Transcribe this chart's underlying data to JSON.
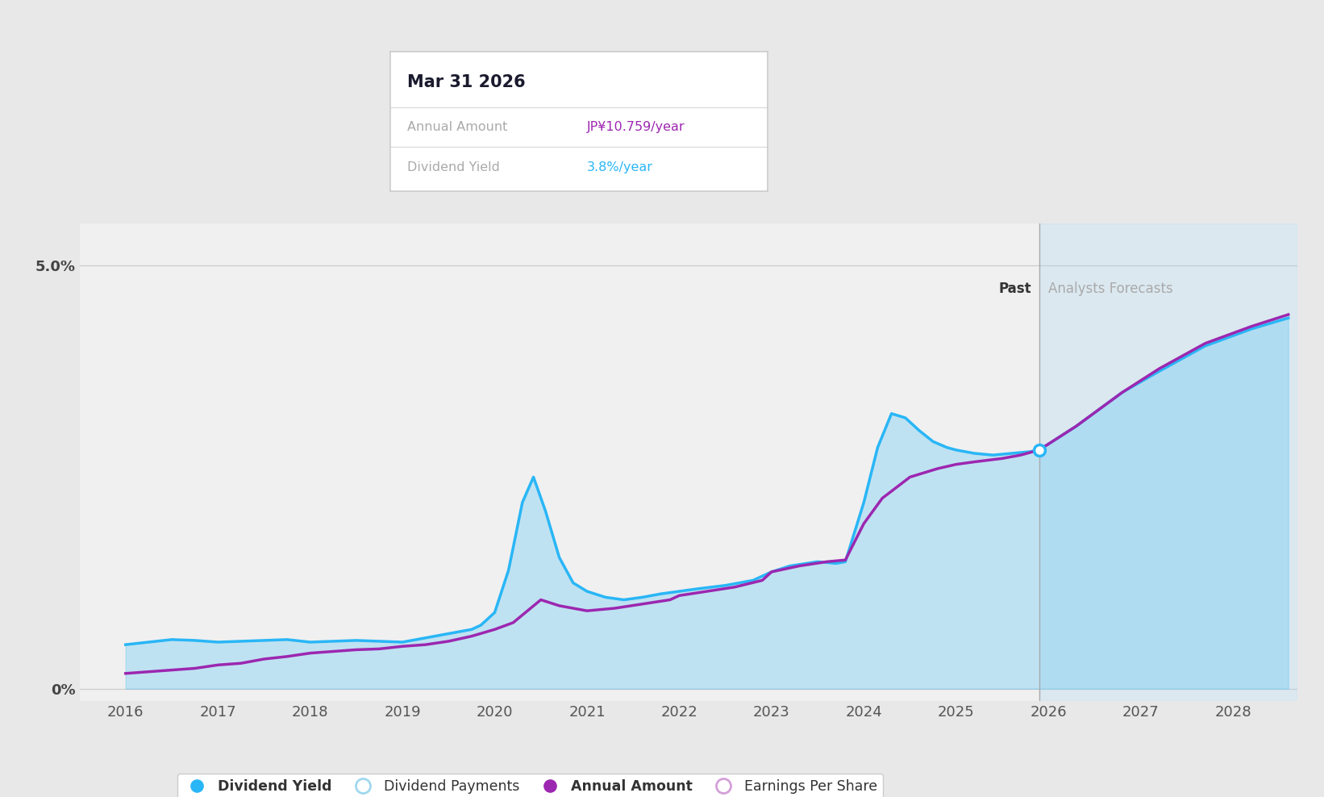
{
  "bg_color": "#e8e8e8",
  "chart_bg": "#f0f0f0",
  "x_min": 2015.5,
  "x_max": 2028.7,
  "y_min": -0.15,
  "y_max": 5.5,
  "xticks": [
    2016,
    2017,
    2018,
    2019,
    2020,
    2021,
    2022,
    2023,
    2024,
    2025,
    2026,
    2027,
    2028
  ],
  "forecast_start": 2025.9,
  "grid_color": "#cccccc",
  "blue_color": "#29b6f6",
  "purple_color": "#9c27b0",
  "divider_color": "#bbbbbb",
  "tooltip_title": "Mar 31 2026",
  "tooltip_annual_label": "Annual Amount",
  "tooltip_annual_value": "JP¥10.759/year",
  "tooltip_yield_label": "Dividend Yield",
  "tooltip_yield_value": "3.8%/year",
  "tooltip_annual_color": "#9c27b0",
  "tooltip_yield_color": "#29b6f6",
  "blue_x": [
    2016.0,
    2016.25,
    2016.5,
    2016.75,
    2017.0,
    2017.25,
    2017.5,
    2017.75,
    2018.0,
    2018.25,
    2018.5,
    2018.75,
    2019.0,
    2019.25,
    2019.5,
    2019.75,
    2019.85,
    2020.0,
    2020.15,
    2020.3,
    2020.42,
    2020.55,
    2020.7,
    2020.85,
    2021.0,
    2021.2,
    2021.4,
    2021.6,
    2021.8,
    2022.0,
    2022.2,
    2022.5,
    2022.8,
    2023.0,
    2023.2,
    2023.5,
    2023.7,
    2023.8,
    2024.0,
    2024.15,
    2024.3,
    2024.45,
    2024.6,
    2024.75,
    2024.9,
    2025.0,
    2025.2,
    2025.4,
    2025.6,
    2025.8,
    2025.9
  ],
  "blue_y": [
    0.52,
    0.55,
    0.58,
    0.57,
    0.55,
    0.56,
    0.57,
    0.58,
    0.55,
    0.56,
    0.57,
    0.56,
    0.55,
    0.6,
    0.65,
    0.7,
    0.75,
    0.9,
    1.4,
    2.2,
    2.5,
    2.1,
    1.55,
    1.25,
    1.15,
    1.08,
    1.05,
    1.08,
    1.12,
    1.15,
    1.18,
    1.22,
    1.28,
    1.38,
    1.45,
    1.5,
    1.48,
    1.5,
    2.2,
    2.85,
    3.25,
    3.2,
    3.05,
    2.92,
    2.85,
    2.82,
    2.78,
    2.76,
    2.78,
    2.8,
    2.82
  ],
  "blue_forecast_x": [
    2025.9,
    2026.3,
    2026.8,
    2027.2,
    2027.7,
    2028.2,
    2028.6
  ],
  "blue_forecast_y": [
    2.82,
    3.1,
    3.5,
    3.75,
    4.05,
    4.25,
    4.38
  ],
  "purple_x": [
    2016.0,
    2016.25,
    2016.5,
    2016.75,
    2017.0,
    2017.25,
    2017.5,
    2017.75,
    2018.0,
    2018.25,
    2018.5,
    2018.75,
    2019.0,
    2019.25,
    2019.5,
    2019.75,
    2020.0,
    2020.2,
    2020.5,
    2020.7,
    2021.0,
    2021.3,
    2021.6,
    2021.9,
    2022.0,
    2022.3,
    2022.6,
    2022.9,
    2023.0,
    2023.3,
    2023.6,
    2023.8,
    2024.0,
    2024.2,
    2024.5,
    2024.8,
    2025.0,
    2025.2,
    2025.5,
    2025.7,
    2025.9
  ],
  "purple_y": [
    0.18,
    0.2,
    0.22,
    0.24,
    0.28,
    0.3,
    0.35,
    0.38,
    0.42,
    0.44,
    0.46,
    0.47,
    0.5,
    0.52,
    0.56,
    0.62,
    0.7,
    0.78,
    1.05,
    0.98,
    0.92,
    0.95,
    1.0,
    1.05,
    1.1,
    1.15,
    1.2,
    1.28,
    1.38,
    1.45,
    1.5,
    1.52,
    1.95,
    2.25,
    2.5,
    2.6,
    2.65,
    2.68,
    2.72,
    2.76,
    2.82
  ],
  "purple_forecast_x": [
    2025.9,
    2026.3,
    2026.8,
    2027.2,
    2027.7,
    2028.2,
    2028.6
  ],
  "purple_forecast_y": [
    2.82,
    3.1,
    3.5,
    3.78,
    4.08,
    4.28,
    4.42
  ]
}
